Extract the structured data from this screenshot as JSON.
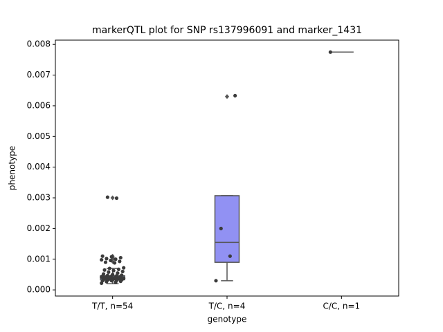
{
  "chart_data": {
    "type": "box",
    "title": "markerQTL plot for SNP rs137996091 and marker_1431",
    "x_label": "genotype",
    "y_label": "phenotype",
    "categories": [
      "T/T, n=54",
      "T/C, n=4",
      "C/C, n=1"
    ],
    "ylim": [
      -0.0002,
      0.00814
    ],
    "yticks": [
      {
        "value": 0,
        "label": "0.000"
      },
      {
        "value": 0.001,
        "label": "0.001"
      },
      {
        "value": 0.002,
        "label": "0.002"
      },
      {
        "value": 0.003,
        "label": "0.003"
      },
      {
        "value": 0.004,
        "label": "0.004"
      },
      {
        "value": 0.005,
        "label": "0.005"
      },
      {
        "value": 0.006,
        "label": "0.006"
      },
      {
        "value": 0.007,
        "label": "0.007"
      },
      {
        "value": 0.008,
        "label": "0.008"
      }
    ],
    "boxes": [
      {
        "color": "#6f9fd8",
        "whislo": 0.0002,
        "q1": 0.00033,
        "med": 0.00038,
        "q3": 0.00046,
        "whishi": 0.0007,
        "fliers": [
          0.00093,
          0.001,
          0.00105,
          0.0011,
          0.003
        ]
      },
      {
        "color": "#9191f3",
        "whislo": 0.0003,
        "q1": 0.0009,
        "med": 0.00155,
        "q3": 0.00307,
        "whishi": 0.00307,
        "fliers": [
          0.0063
        ]
      },
      {
        "color": "#9191f3",
        "whislo": 0.00775,
        "q1": 0.00775,
        "med": 0.00775,
        "q3": 0.00775,
        "whishi": 0.00775,
        "fliers": []
      }
    ],
    "points": [
      [
        0.00022,
        0.00025,
        0.00027,
        0.00028,
        0.0003,
        0.0003,
        0.00031,
        0.00032,
        0.00033,
        0.00033,
        0.00034,
        0.00035,
        0.00035,
        0.00036,
        0.00036,
        0.00037,
        0.00037,
        0.00038,
        0.00038,
        0.00039,
        0.0004,
        0.0004,
        0.00041,
        0.00042,
        0.00042,
        0.00043,
        0.00044,
        0.00045,
        0.00045,
        0.00046,
        0.00047,
        0.00048,
        0.0005,
        0.00052,
        0.00055,
        0.00058,
        0.0006,
        0.00063,
        0.00065,
        0.00067,
        0.0007,
        0.00072,
        0.00088,
        0.0009,
        0.00093,
        0.00096,
        0.00098,
        0.001,
        0.00102,
        0.00105,
        0.00108,
        0.0011,
        0.00299,
        0.00302
      ],
      [
        0.0003,
        0.0011,
        0.002,
        0.00633
      ],
      [
        0.00775
      ]
    ],
    "point_color": "#3b3b3b"
  }
}
